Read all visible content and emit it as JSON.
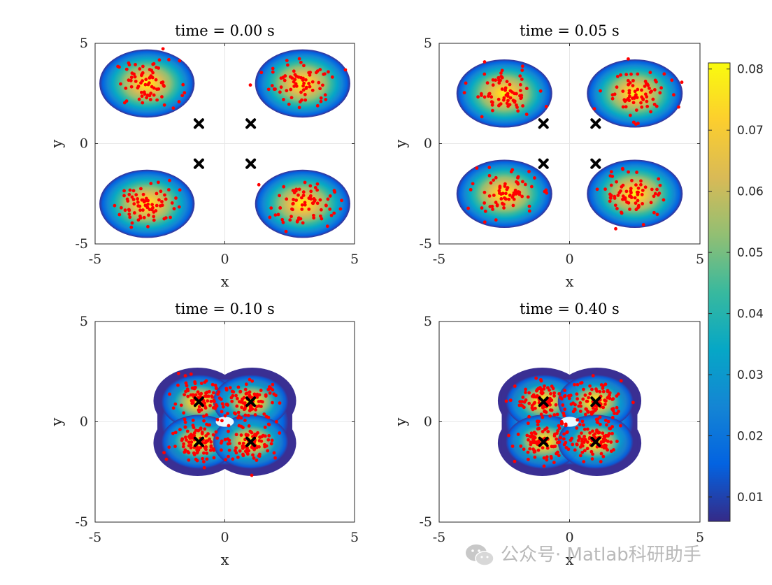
{
  "figure": {
    "subplots": [
      {
        "title": "time = 0.00 s",
        "xlabel": "x",
        "ylabel": "y"
      },
      {
        "title": "time = 0.05 s",
        "xlabel": "x",
        "ylabel": "y"
      },
      {
        "title": "time = 0.10 s",
        "xlabel": "x",
        "ylabel": "y"
      },
      {
        "title": "time = 0.40 s",
        "xlabel": "x",
        "ylabel": "y"
      }
    ],
    "colorbar": {
      "colormap": "parula",
      "range": [
        0.006,
        0.081
      ],
      "ticks": [
        "0.01",
        "0.02",
        "0.03",
        "0.04",
        "0.05",
        "0.06",
        "0.07",
        "0.08"
      ]
    },
    "colors": {
      "points": "#ff0000",
      "markers": "#000000",
      "grid": "#e6e6e6"
    }
  },
  "watermark": {
    "icon": "wechat-icon",
    "text": "公众号· Matlab科研助手"
  },
  "chart_data": [
    {
      "type": "scatter",
      "title": "time = 0.00 s",
      "xlabel": "x",
      "ylabel": "y",
      "xlim": [
        -5,
        5
      ],
      "ylim": [
        -5,
        5
      ],
      "xticks": [
        "-5",
        "0",
        "5"
      ],
      "yticks": [
        "5",
        "0",
        "-5"
      ],
      "grid": "on",
      "density_clusters": [
        [
          -3,
          3
        ],
        [
          3,
          3
        ],
        [
          -3,
          -3
        ],
        [
          3,
          -3
        ]
      ],
      "cluster_radius": 1.7,
      "markers": [
        [
          -1,
          1
        ],
        [
          1,
          1
        ],
        [
          -1,
          -1
        ],
        [
          1,
          -1
        ]
      ],
      "points_per_cluster": 75,
      "point_spread": 1.0
    },
    {
      "type": "scatter",
      "title": "time = 0.05 s",
      "xlabel": "x",
      "ylabel": "y",
      "xlim": [
        -5,
        5
      ],
      "ylim": [
        -5,
        5
      ],
      "xticks": [
        "-5",
        "0",
        "5"
      ],
      "yticks": [
        "5",
        "0",
        "-5"
      ],
      "grid": "on",
      "density_clusters": [
        [
          -2.5,
          2.5
        ],
        [
          2.5,
          2.5
        ],
        [
          -2.5,
          -2.5
        ],
        [
          2.5,
          -2.5
        ]
      ],
      "cluster_radius": 1.7,
      "markers": [
        [
          -1,
          1
        ],
        [
          1,
          1
        ],
        [
          -1,
          -1
        ],
        [
          1,
          -1
        ]
      ],
      "points_per_cluster": 75,
      "point_spread": 1.0
    },
    {
      "type": "scatter",
      "title": "time = 0.10 s",
      "xlabel": "x",
      "ylabel": "y",
      "xlim": [
        -5,
        5
      ],
      "ylim": [
        -5,
        5
      ],
      "xticks": [
        "-5",
        "0",
        "5"
      ],
      "yticks": [
        "5",
        "0",
        "-5"
      ],
      "grid": "on",
      "density_clusters": [
        [
          -1,
          1
        ],
        [
          1,
          1
        ],
        [
          -1,
          -1
        ],
        [
          1,
          -1
        ]
      ],
      "cluster_radius": 1.5,
      "markers": [
        [
          -1,
          1
        ],
        [
          1,
          1
        ],
        [
          -1,
          -1
        ],
        [
          1,
          -1
        ]
      ],
      "points_per_cluster": 95,
      "point_spread": 0.85
    },
    {
      "type": "scatter",
      "title": "time = 0.40 s",
      "xlabel": "x",
      "ylabel": "y",
      "xlim": [
        -5,
        5
      ],
      "ylim": [
        -5,
        5
      ],
      "xticks": [
        "-5",
        "0",
        "5"
      ],
      "yticks": [
        "5",
        "0",
        "-5"
      ],
      "grid": "on",
      "density_clusters": [
        [
          -1,
          1
        ],
        [
          1,
          1
        ],
        [
          -1,
          -1
        ],
        [
          1,
          -1
        ]
      ],
      "cluster_radius": 1.5,
      "markers": [
        [
          -1,
          1
        ],
        [
          1,
          1
        ],
        [
          -1,
          -1
        ],
        [
          1,
          -1
        ]
      ],
      "points_per_cluster": 95,
      "point_spread": 0.85
    }
  ]
}
